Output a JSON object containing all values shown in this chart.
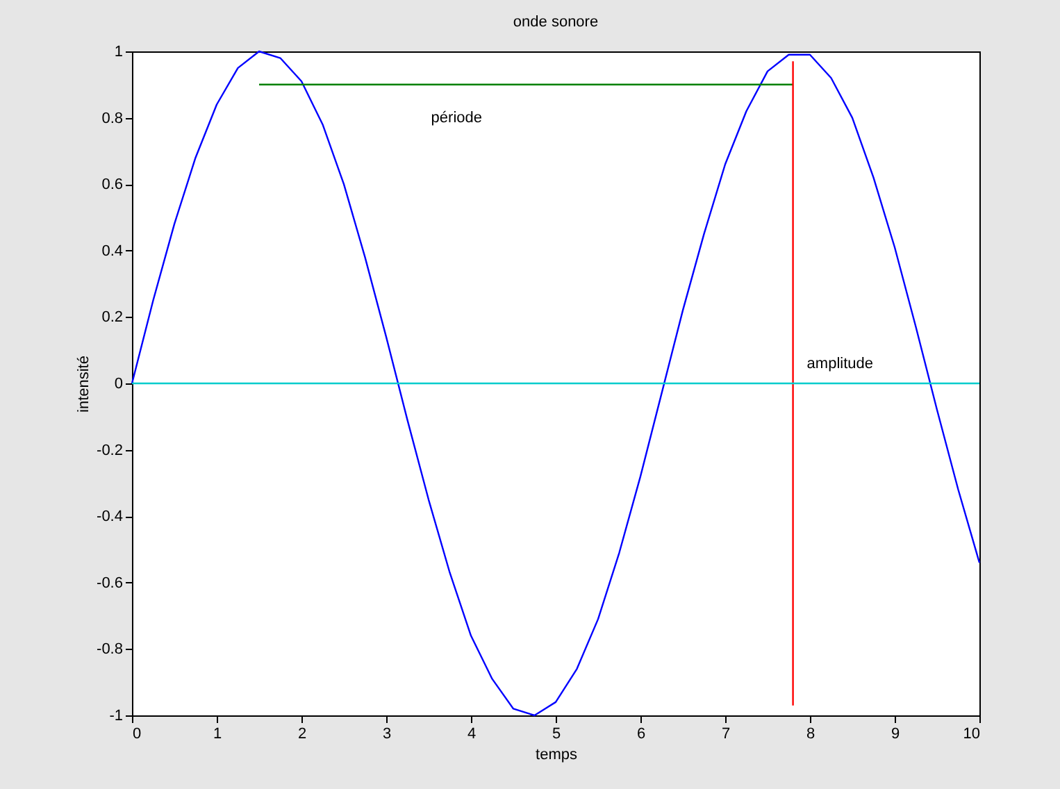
{
  "chart_data": {
    "type": "line",
    "title": "onde sonore",
    "xlabel": "temps",
    "ylabel": "intensité",
    "xlim": [
      0,
      10
    ],
    "xticks": [
      0,
      1,
      2,
      3,
      4,
      5,
      6,
      7,
      8,
      9,
      10
    ],
    "ylim": [
      -1,
      1
    ],
    "yticks": [
      -1,
      -0.8,
      -0.6,
      -0.4,
      -0.2,
      0,
      0.2,
      0.4,
      0.6,
      0.8,
      1
    ],
    "grid": false,
    "legend": false,
    "marker": "none",
    "line_style": "solid",
    "series": [
      {
        "type": "line",
        "color": "#0000ff",
        "x": [
          0,
          0.25,
          0.5,
          0.75,
          1,
          1.25,
          1.5,
          1.75,
          2,
          2.25,
          2.5,
          2.75,
          3,
          3.25,
          3.5,
          3.75,
          4,
          4.25,
          4.5,
          4.75,
          5,
          5.25,
          5.5,
          5.75,
          6,
          6.25,
          6.5,
          6.75,
          7,
          7.25,
          7.5,
          7.75,
          8,
          8.25,
          8.5,
          8.75,
          9,
          9.25,
          9.5,
          9.75,
          10
        ],
        "values": [
          0,
          0.25,
          0.48,
          0.68,
          0.84,
          0.95,
          1,
          0.98,
          0.91,
          0.78,
          0.6,
          0.38,
          0.14,
          -0.11,
          -0.35,
          -0.57,
          -0.76,
          -0.89,
          -0.98,
          -1,
          -0.96,
          -0.86,
          -0.71,
          -0.51,
          -0.28,
          -0.03,
          0.22,
          0.45,
          0.66,
          0.82,
          0.94,
          0.99,
          0.99,
          0.92,
          0.8,
          0.62,
          0.41,
          0.17,
          -0.08,
          -0.32,
          -0.54
        ]
      },
      {
        "type": "line",
        "name": "période",
        "color": "#008000",
        "x": [
          1.5,
          7.8
        ],
        "values": [
          0.9,
          0.9
        ]
      },
      {
        "type": "line",
        "name": "amplitude",
        "color": "#ff0000",
        "x": [
          7.8,
          7.8
        ],
        "values": [
          -0.97,
          0.97
        ]
      }
    ],
    "ref_lines": [
      {
        "axis": "y",
        "value": 0,
        "color": "#00cccc"
      }
    ]
  }
}
